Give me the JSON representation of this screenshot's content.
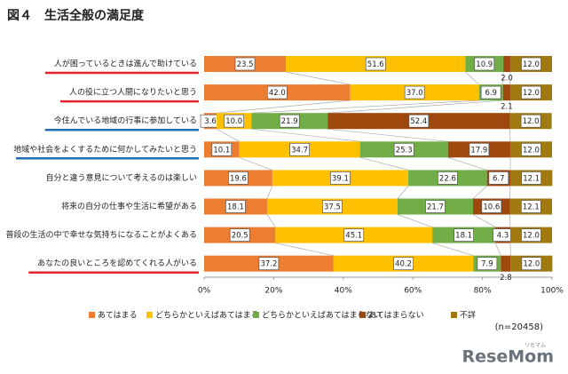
{
  "chart_data": {
    "type": "stacked-bar-horizontal",
    "title": "図４　生活全般の満足度",
    "categories": [
      "人が困っているときは進んで助けている",
      "人の役に立つ人間になりたいと思う",
      "今住んでいる地域の行事に参加している",
      "地域や社会をよくするために何かしてみたいと思う",
      "自分と違う意見について考えるのは楽しい",
      "将来の自分の仕事や生活に希望がある",
      "普段の生活の中で幸せな気持ちになることがよくある",
      "あなたの良いところを認めてくれる人がいる"
    ],
    "label_underlines": [
      "#e8202a",
      "#e8202a",
      "#1f6fb5",
      "#1f6fb5",
      null,
      null,
      null,
      "#e8202a"
    ],
    "series": [
      {
        "name": "あてはまる",
        "color": "#ed7d31",
        "values": [
          23.5,
          42.0,
          3.6,
          10.1,
          19.6,
          18.1,
          20.5,
          37.2
        ],
        "value_labels": [
          "23.5",
          "42.0",
          "3.6",
          "10.1",
          "19.6",
          "18.1",
          "20.5",
          "37.2"
        ]
      },
      {
        "name": "どちらかといえばあてはまる",
        "color": "#ffc000",
        "values": [
          51.6,
          37.0,
          10.0,
          34.7,
          39.1,
          37.5,
          45.1,
          40.2
        ],
        "value_labels": [
          "51.6",
          "37.0",
          "10.0",
          "34.7",
          "39.1",
          "37.5",
          "45.1",
          "40.2"
        ]
      },
      {
        "name": "どちらかといえばあてはまらない",
        "color": "#70ad47",
        "values": [
          10.9,
          6.9,
          21.9,
          25.3,
          22.6,
          21.7,
          18.1,
          7.9
        ],
        "value_labels": [
          "10.9",
          "6.9",
          "21.9",
          "25.3",
          "22.6",
          "21.7",
          "18.1",
          "7.9"
        ]
      },
      {
        "name": "あてはまらない",
        "color": "#9e480e",
        "values": [
          2.0,
          2.1,
          52.4,
          17.9,
          6.7,
          10.6,
          4.3,
          2.8
        ],
        "value_labels": [
          "2.0",
          "2.1",
          "52.4",
          "17.9",
          "6.7",
          "10.6",
          "4.3",
          "2.8"
        ]
      },
      {
        "name": "不詳",
        "color": "#a07a10",
        "values": [
          12.0,
          12.0,
          12.0,
          12.0,
          12.1,
          12.1,
          12.0,
          12.0
        ],
        "value_labels": [
          "12.0",
          "12.0",
          "12.0",
          "12.0",
          "12.1",
          "12.1",
          "12.0",
          "12.0"
        ]
      }
    ],
    "xlim": [
      0,
      100
    ],
    "xticks": [
      {
        "value": 0,
        "label": "0%"
      },
      {
        "value": 20,
        "label": "20%"
      },
      {
        "value": 40,
        "label": "40%"
      },
      {
        "value": 60,
        "label": "60%"
      },
      {
        "value": 80,
        "label": "80%"
      },
      {
        "value": 100,
        "label": "100%"
      }
    ],
    "note": "(n=20458)",
    "logo": "ReseMom",
    "logo_ruby": "リセマム"
  }
}
